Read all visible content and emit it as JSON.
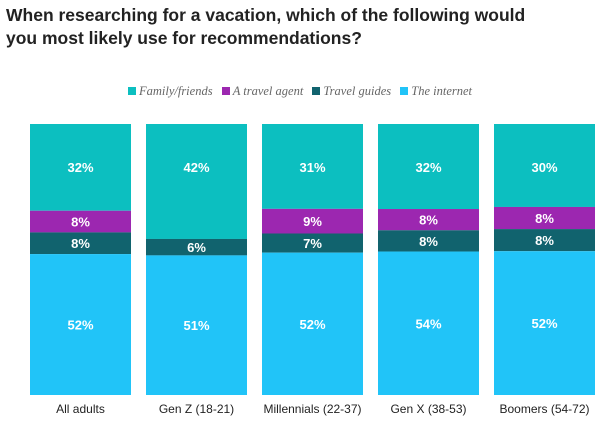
{
  "title_lines": [
    "When researching for a vacation, which of the following would",
    "you most likely use for recommendations?"
  ],
  "colors": {
    "family": "#0cbfc0",
    "agent": "#9c27b0",
    "guides": "#11636e",
    "internet": "#21c4f8"
  },
  "chart_data": {
    "type": "bar",
    "stacked": true,
    "orientation": "vertical",
    "title": "When researching for a vacation, which of the following would you most likely use for recommendations?",
    "categories": [
      "All adults",
      "Gen Z (18-21)",
      "Millennials (22-37)",
      "Gen X (38-53)",
      "Boomers (54-72)"
    ],
    "series": [
      {
        "name": "Family/friends",
        "color": "#0cbfc0",
        "values": [
          32,
          42,
          31,
          32,
          30
        ],
        "labels": [
          "32%",
          "42%",
          "31%",
          "32%",
          "30%"
        ]
      },
      {
        "name": "A travel agent",
        "color": "#9c27b0",
        "values": [
          8,
          0,
          9,
          8,
          8
        ],
        "labels": [
          "8%",
          "",
          "9%",
          "8%",
          "8%"
        ]
      },
      {
        "name": "Travel guides",
        "color": "#11636e",
        "values": [
          8,
          6,
          7,
          8,
          8
        ],
        "labels": [
          "8%",
          "6%",
          "7%",
          "8%",
          "8%"
        ]
      },
      {
        "name": "The internet",
        "color": "#21c4f8",
        "values": [
          52,
          51,
          52,
          54,
          52
        ],
        "labels": [
          "52%",
          "51%",
          "52%",
          "54%",
          "52%"
        ]
      }
    ],
    "stack_order_top_to_bottom": [
      "Family/friends",
      "A travel agent",
      "Travel guides",
      "The internet"
    ],
    "legend_position": "top-center",
    "grid": false
  }
}
